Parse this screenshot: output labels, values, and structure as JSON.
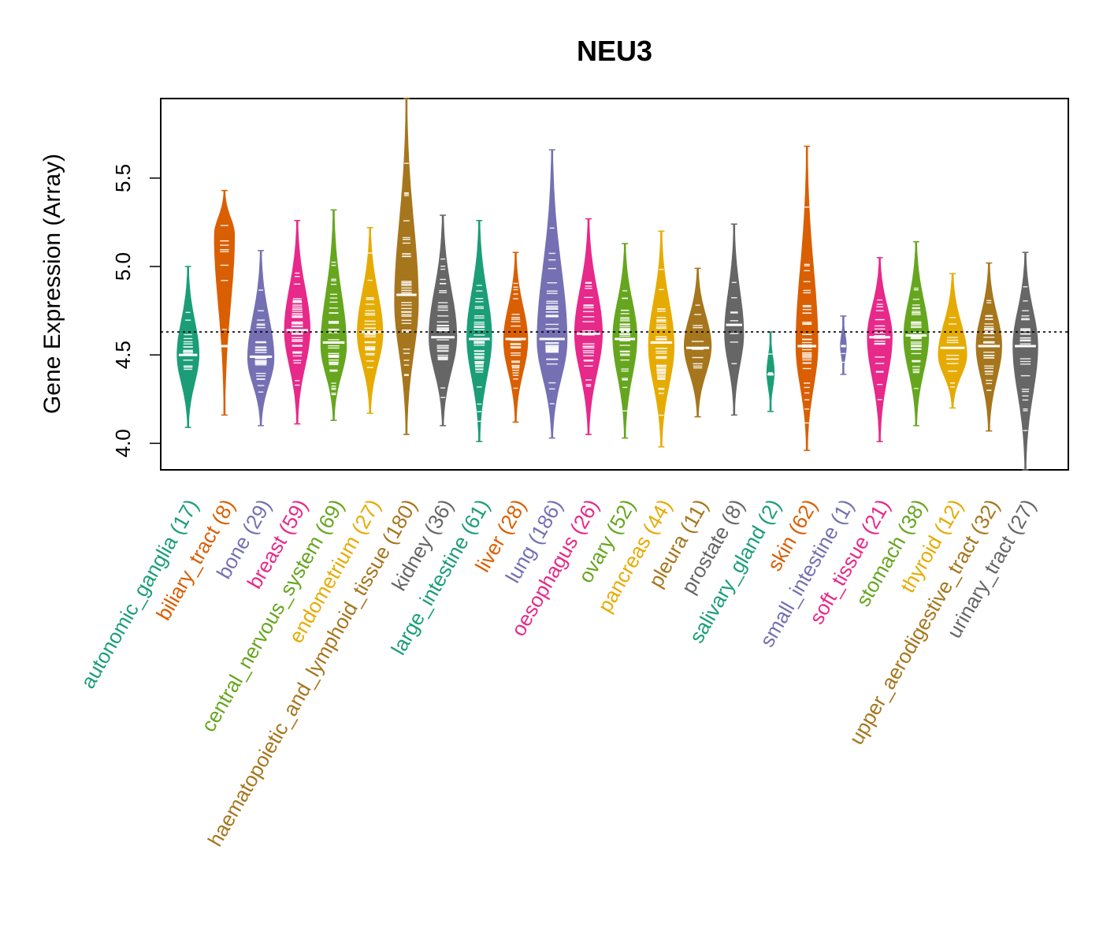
{
  "chart_data": {
    "type": "violin",
    "title": "NEU3",
    "xlabel": "",
    "ylabel": "Gene Expression (Array)",
    "ylim": [
      3.85,
      5.95
    ],
    "yticks": [
      4.0,
      4.5,
      5.0,
      5.5
    ],
    "ytick_labels": [
      "4.0",
      "4.5",
      "5.0",
      "5.5"
    ],
    "reference_line": 4.63,
    "grid": false,
    "categories": [
      {
        "name": "autonomic_ganglia",
        "n": 17,
        "label": "autonomic_ganglia (17)",
        "color": "#1B9E77",
        "min": 4.09,
        "max": 5.0,
        "median": 4.5,
        "center": 4.5,
        "width": 0.6
      },
      {
        "name": "biliary_tract",
        "n": 8,
        "label": "biliary_tract (8)",
        "color": "#D95F02",
        "min": 4.16,
        "max": 5.43,
        "median": 4.55,
        "center": 5.18,
        "width": 0.55
      },
      {
        "name": "bone",
        "n": 29,
        "label": "bone (29)",
        "color": "#7570B3",
        "min": 4.1,
        "max": 5.09,
        "median": 4.49,
        "center": 4.48,
        "width": 0.72
      },
      {
        "name": "breast",
        "n": 59,
        "label": "breast (59)",
        "color": "#E7298A",
        "min": 4.11,
        "max": 5.26,
        "median": 4.64,
        "center": 4.64,
        "width": 0.7
      },
      {
        "name": "central_nervous_system",
        "n": 69,
        "label": "central_nervous_system (69)",
        "color": "#66A61E",
        "min": 4.13,
        "max": 5.32,
        "median": 4.57,
        "center": 4.55,
        "width": 0.7
      },
      {
        "name": "endometrium",
        "n": 27,
        "label": "endometrium (27)",
        "color": "#E6AB02",
        "min": 4.17,
        "max": 5.22,
        "median": 4.63,
        "center": 4.62,
        "width": 0.7
      },
      {
        "name": "haematopoietic_and_lymphoid_tissue",
        "n": 180,
        "label": "haematopoietic_and_lymphoid_tissue (180)",
        "color": "#A6761D",
        "min": 4.05,
        "max": 5.95,
        "median": 4.84,
        "center": 4.8,
        "width": 0.65
      },
      {
        "name": "kidney",
        "n": 36,
        "label": "kidney (36)",
        "color": "#666666",
        "min": 4.1,
        "max": 5.29,
        "median": 4.6,
        "center": 4.6,
        "width": 0.76
      },
      {
        "name": "large_intestine",
        "n": 61,
        "label": "large_intestine (61)",
        "color": "#1B9E77",
        "min": 4.01,
        "max": 5.26,
        "median": 4.59,
        "center": 4.6,
        "width": 0.68
      },
      {
        "name": "liver",
        "n": 28,
        "label": "liver (28)",
        "color": "#D95F02",
        "min": 4.12,
        "max": 5.08,
        "median": 4.59,
        "center": 4.58,
        "width": 0.66
      },
      {
        "name": "lung",
        "n": 186,
        "label": "lung (186)",
        "color": "#7570B3",
        "min": 4.03,
        "max": 5.66,
        "median": 4.59,
        "center": 4.58,
        "width": 0.82
      },
      {
        "name": "oesophagus",
        "n": 26,
        "label": "oesophagus (26)",
        "color": "#E7298A",
        "min": 4.05,
        "max": 5.27,
        "median": 4.62,
        "center": 4.62,
        "width": 0.76
      },
      {
        "name": "ovary",
        "n": 52,
        "label": "ovary (52)",
        "color": "#66A61E",
        "min": 4.03,
        "max": 5.13,
        "median": 4.59,
        "center": 4.6,
        "width": 0.66
      },
      {
        "name": "pancreas",
        "n": 44,
        "label": "pancreas (44)",
        "color": "#E6AB02",
        "min": 3.98,
        "max": 5.2,
        "median": 4.57,
        "center": 4.55,
        "width": 0.7
      },
      {
        "name": "pleura",
        "n": 11,
        "label": "pleura (11)",
        "color": "#A6761D",
        "min": 4.15,
        "max": 4.99,
        "median": 4.54,
        "center": 4.55,
        "width": 0.74
      },
      {
        "name": "prostate",
        "n": 8,
        "label": "prostate (8)",
        "color": "#666666",
        "min": 4.16,
        "max": 5.24,
        "median": 4.67,
        "center": 4.62,
        "width": 0.52
      },
      {
        "name": "salivary_gland",
        "n": 2,
        "label": "salivary_gland (2)",
        "color": "#1B9E77",
        "min": 4.18,
        "max": 4.63,
        "median": 4.39,
        "center": 4.4,
        "width": 0.2
      },
      {
        "name": "skin",
        "n": 62,
        "label": "skin (62)",
        "color": "#D95F02",
        "min": 3.96,
        "max": 5.68,
        "median": 4.55,
        "center": 4.55,
        "width": 0.6
      },
      {
        "name": "small_intestine",
        "n": 1,
        "label": "small_intestine (1)",
        "color": "#7570B3",
        "min": 4.39,
        "max": 4.72,
        "median": 4.55,
        "center": 4.55,
        "width": 0.16
      },
      {
        "name": "soft_tissue",
        "n": 21,
        "label": "soft_tissue (21)",
        "color": "#E7298A",
        "min": 4.01,
        "max": 5.05,
        "median": 4.6,
        "center": 4.6,
        "width": 0.68
      },
      {
        "name": "stomach",
        "n": 38,
        "label": "stomach (38)",
        "color": "#66A61E",
        "min": 4.1,
        "max": 5.14,
        "median": 4.61,
        "center": 4.6,
        "width": 0.68
      },
      {
        "name": "thyroid",
        "n": 12,
        "label": "thyroid (12)",
        "color": "#E6AB02",
        "min": 4.2,
        "max": 4.96,
        "median": 4.54,
        "center": 4.5,
        "width": 0.78
      },
      {
        "name": "upper_aerodigestive_tract",
        "n": 32,
        "label": "upper_aerodigestive_tract (32)",
        "color": "#A6761D",
        "min": 4.07,
        "max": 5.02,
        "median": 4.55,
        "center": 4.55,
        "width": 0.7
      },
      {
        "name": "urinary_tract",
        "n": 27,
        "label": "urinary_tract (27)",
        "color": "#666666",
        "min": 3.85,
        "max": 5.08,
        "median": 4.55,
        "center": 4.55,
        "width": 0.68
      }
    ]
  }
}
